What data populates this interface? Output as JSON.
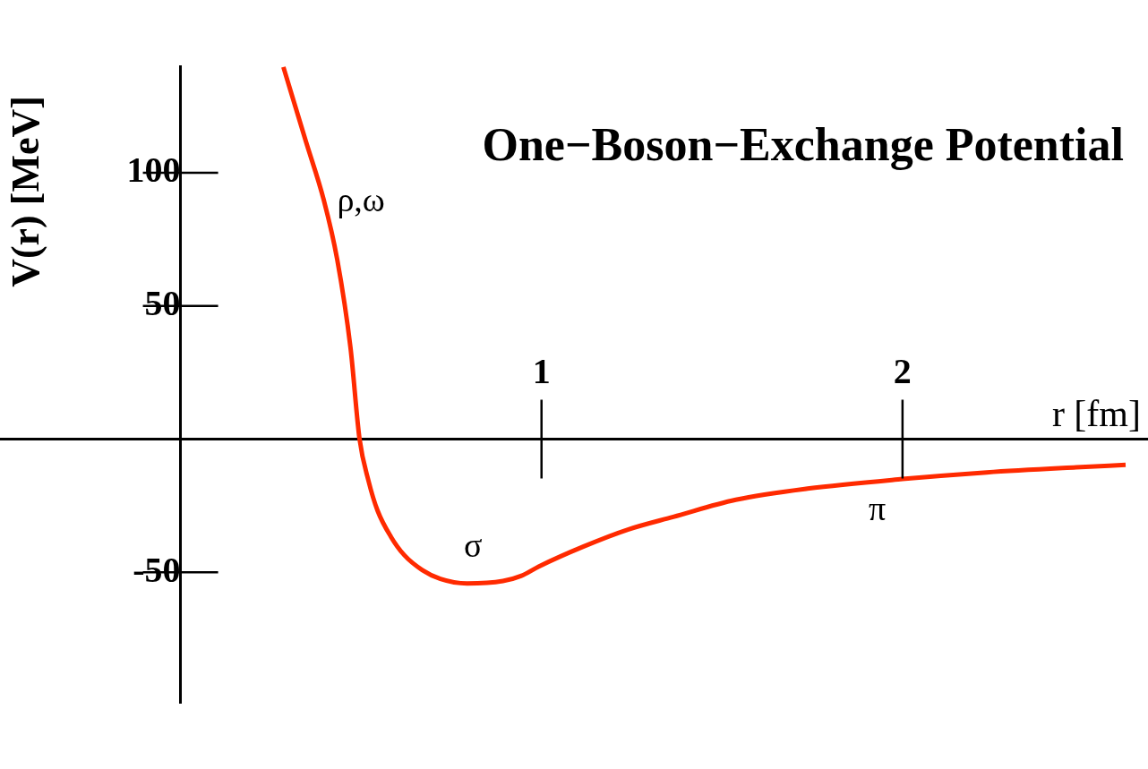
{
  "chart_data": {
    "type": "line",
    "title": "One−Boson−Exchange Potential",
    "x_label": "r [fm]",
    "y_label": "V(r) [MeV]",
    "x": [
      0.285,
      0.347,
      0.397,
      0.434,
      0.471,
      0.496,
      0.521,
      0.546,
      0.583,
      0.62,
      0.67,
      0.72,
      0.794,
      0.893,
      0.943,
      0.993,
      1.117,
      1.241,
      1.365,
      1.538,
      1.737,
      2.0,
      2.233,
      2.481,
      2.618
    ],
    "values": [
      139.7,
      111.9,
      89.7,
      67.5,
      34.2,
      0,
      -15.8,
      -26.9,
      -36.7,
      -43.6,
      -49.2,
      -52.5,
      -54.2,
      -53.3,
      -51.4,
      -47.8,
      -40.3,
      -33.9,
      -29.2,
      -22.8,
      -18.6,
      -15,
      -12.5,
      -10.6,
      -9.7
    ],
    "color": "#ff2a00",
    "xlim": [
      -0.5,
      2.68
    ],
    "ylim": [
      -99,
      140
    ],
    "xticks": [
      1,
      2
    ],
    "yticks": [
      -50,
      50,
      100
    ],
    "grid": false,
    "annotations": [
      {
        "text": "ρ,ω",
        "x": 0.5,
        "y": 89
      },
      {
        "text": "σ",
        "x": 0.81,
        "y": -41
      },
      {
        "text": "π",
        "x": 1.93,
        "y": -27
      }
    ]
  }
}
